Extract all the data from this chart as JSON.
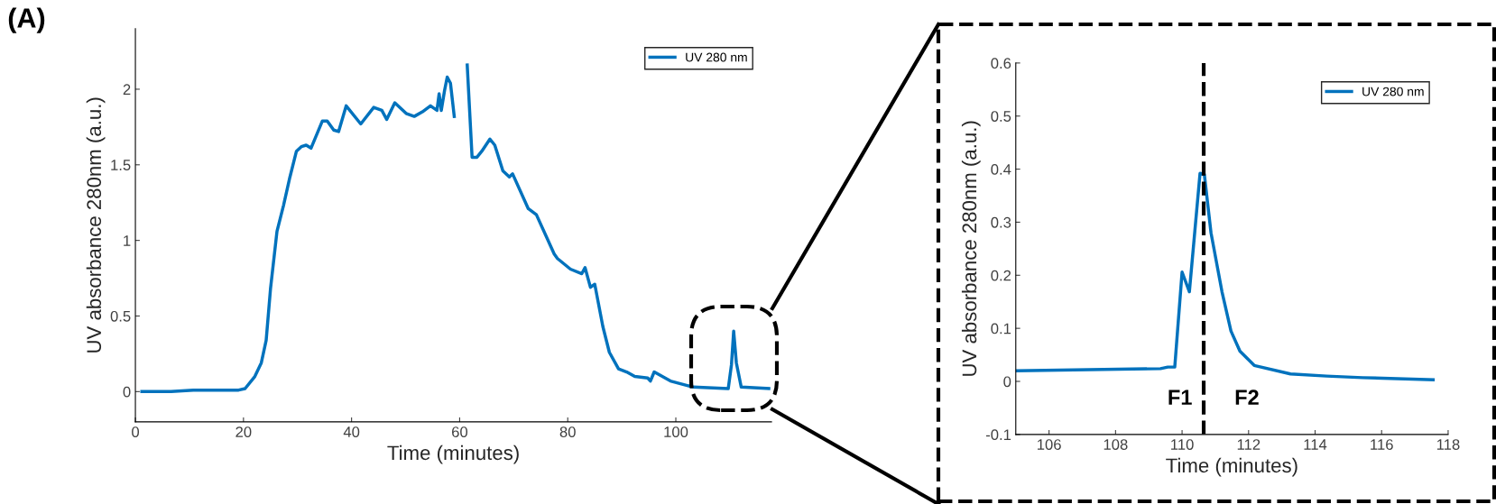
{
  "chart_data": [
    {
      "type": "line",
      "annotations": [
        "(A)"
      ],
      "xlabel": "Time (minutes)",
      "ylabel": "UV absorbance 280nm (a.u.)",
      "xlim": [
        0,
        117.7
      ],
      "ylim": [
        -0.2,
        2.4
      ],
      "xticks": [
        0,
        20,
        40,
        60,
        80,
        100
      ],
      "yticks": [
        0,
        0.5,
        1,
        1.5,
        2
      ],
      "legend": "top right",
      "grid": false,
      "series": [
        {
          "name": "UV 280 nm",
          "color": "#0072bd",
          "x": [
            1.2,
            6.6,
            10.7,
            19.1,
            20.3,
            22.1,
            23.3,
            24.2,
            25.0,
            26.2,
            27.4,
            28.6,
            29.8,
            30.7,
            31.6,
            32.5,
            34.6,
            35.5,
            36.7,
            37.6,
            39.0,
            41.7,
            44.1,
            45.6,
            46.5,
            48.0,
            50.1,
            51.6,
            53.1,
            54.6,
            55.8,
            56.2,
            56.6,
            57.2,
            57.7,
            58.3,
            59.0,
            59.6,
            60.8,
            61.4,
            62.3,
            63.2,
            64.1,
            65.6,
            66.5,
            68.0,
            69.2,
            69.8,
            72.7,
            74.2,
            77.5,
            78.1,
            80.5,
            82.6,
            83.2,
            84.2,
            85.0,
            86.5,
            87.7,
            89.4,
            90.9,
            92.4,
            94.8,
            95.3,
            96.0,
            99.0,
            103.2,
            109.7,
            110.3,
            110.7,
            111.2,
            112.1,
            117.2
          ],
          "values": [
            0.0,
            0.0,
            0.01,
            0.01,
            0.02,
            0.1,
            0.19,
            0.34,
            0.68,
            1.06,
            1.23,
            1.42,
            1.59,
            1.62,
            1.63,
            1.61,
            1.79,
            1.79,
            1.73,
            1.72,
            1.89,
            1.77,
            1.88,
            1.86,
            1.8,
            1.91,
            1.84,
            1.82,
            1.85,
            1.89,
            1.86,
            1.97,
            1.86,
            1.99,
            2.08,
            2.04,
            1.82,
            null,
            null,
            2.16,
            1.55,
            1.55,
            1.59,
            1.67,
            1.63,
            1.46,
            1.42,
            1.44,
            1.21,
            1.17,
            0.91,
            0.88,
            0.81,
            0.78,
            0.82,
            0.69,
            0.71,
            0.43,
            0.26,
            0.15,
            0.13,
            0.1,
            0.09,
            0.07,
            0.13,
            0.07,
            0.03,
            0.02,
            0.18,
            0.4,
            0.19,
            0.03,
            0.02
          ]
        }
      ]
    },
    {
      "type": "line",
      "xlabel": "Time (minutes)",
      "ylabel": "UV absorbance 280nm (a.u.)",
      "xlim": [
        105,
        118
      ],
      "ylim": [
        -0.1,
        0.6
      ],
      "xticks": [
        106,
        108,
        110,
        112,
        114,
        116,
        118
      ],
      "yticks": [
        -0.1,
        0,
        0.1,
        0.2,
        0.3,
        0.4,
        0.5,
        0.6
      ],
      "legend": "top right",
      "grid": false,
      "ref_lines": [
        {
          "axis": "x",
          "value": 110.65,
          "color": "#000000",
          "line_style": "dashed"
        }
      ],
      "annotations": [
        "F1",
        "F2"
      ],
      "series": [
        {
          "name": "UV 280 nm",
          "color": "#0072bd",
          "x": [
            105.0,
            109.35,
            109.57,
            109.78,
            110.0,
            110.22,
            110.54,
            110.67,
            110.87,
            111.2,
            111.47,
            111.74,
            112.17,
            113.26,
            114.35,
            115.43,
            117.55
          ],
          "values": [
            0.02,
            0.024,
            0.027,
            0.027,
            0.206,
            0.169,
            0.392,
            0.39,
            0.28,
            0.169,
            0.095,
            0.057,
            0.03,
            0.014,
            0.01,
            0.007,
            0.003
          ]
        }
      ]
    }
  ]
}
